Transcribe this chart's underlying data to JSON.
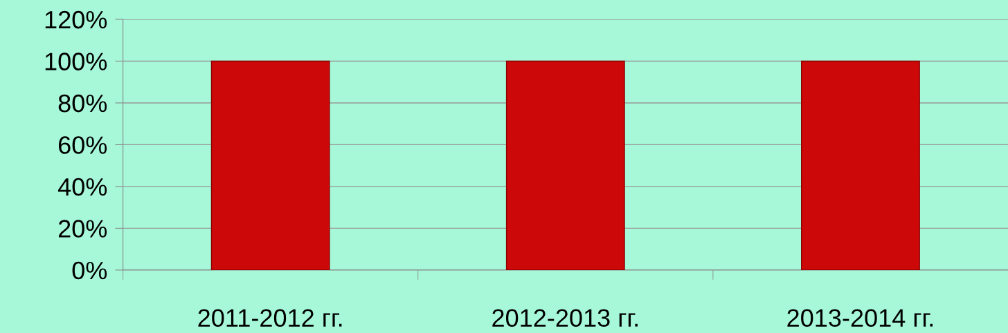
{
  "chart_data": {
    "type": "bar",
    "categories": [
      "2011-2012 гг.",
      "2012-2013 гг.",
      "2013-2014 гг."
    ],
    "values": [
      100,
      100,
      100
    ],
    "color": "#cc0808",
    "ylim": [
      0,
      120
    ],
    "yticks": [
      {
        "value": 0,
        "label": "0%"
      },
      {
        "value": 20,
        "label": "20%"
      },
      {
        "value": 40,
        "label": "40%"
      },
      {
        "value": 60,
        "label": "60%"
      },
      {
        "value": 80,
        "label": "80%"
      },
      {
        "value": 100,
        "label": "100%"
      },
      {
        "value": 120,
        "label": "120%"
      }
    ],
    "grid": "y"
  }
}
